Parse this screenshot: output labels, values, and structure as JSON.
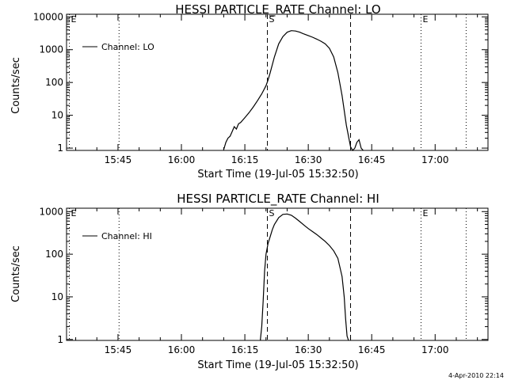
{
  "chart_data": [
    {
      "type": "line",
      "title": "HESSI PARTICLE_RATE Channel: LO",
      "xlabel": "Start Time (19-Jul-05 15:32:50)",
      "ylabel": "Counts/sec",
      "y_scale": "log",
      "ylim": [
        0.85,
        12000
      ],
      "xlim": [
        "15:32:50",
        "17:12:30"
      ],
      "x_ticks": [
        "15:45",
        "16:00",
        "16:15",
        "16:30",
        "16:45",
        "17:00"
      ],
      "y_ticks": [
        "1",
        "10",
        "100",
        "1000",
        "10000"
      ],
      "legend": {
        "placement": "top-left",
        "entries": [
          "Channel: LO"
        ]
      },
      "grid": false,
      "markers": [
        {
          "label": "E",
          "time": "15:33:30",
          "style": "dotted"
        },
        {
          "time": "15:45:15",
          "style": "dotted"
        },
        {
          "label": "S",
          "time": "16:20:20",
          "style": "dashed"
        },
        {
          "time": "16:40:00",
          "style": "dashed"
        },
        {
          "label": "E",
          "time": "16:56:40",
          "style": "dotted"
        },
        {
          "time": "17:07:20",
          "style": "dotted"
        }
      ],
      "series": [
        {
          "name": "Channel: LO",
          "x": [
            "16:10:00",
            "16:10:30",
            "16:11:00",
            "16:11:30",
            "16:12:00",
            "16:12:30",
            "16:13:00",
            "16:13:30",
            "16:14:00",
            "16:15:00",
            "16:16:00",
            "16:17:00",
            "16:18:00",
            "16:19:00",
            "16:20:00",
            "16:20:30",
            "16:21:00",
            "16:22:00",
            "16:23:00",
            "16:24:00",
            "16:25:00",
            "16:26:00",
            "16:27:00",
            "16:28:00",
            "16:29:00",
            "16:30:00",
            "16:31:00",
            "16:32:00",
            "16:33:00",
            "16:34:00",
            "16:35:00",
            "16:36:00",
            "16:37:00",
            "16:38:00",
            "16:39:00",
            "16:40:00",
            "16:40:30",
            "16:41:00",
            "16:41:30",
            "16:42:00",
            "16:42:30",
            "16:43:00"
          ],
          "values": [
            0.9,
            1.5,
            2.0,
            2.3,
            3.2,
            4.5,
            3.8,
            5.5,
            6.0,
            8.5,
            12,
            18,
            28,
            45,
            80,
            120,
            200,
            600,
            1500,
            2500,
            3400,
            3800,
            3700,
            3400,
            3000,
            2700,
            2400,
            2100,
            1800,
            1500,
            1100,
            600,
            200,
            40,
            5,
            1.1,
            0.85,
            1.0,
            1.5,
            1.8,
            1.0,
            0.85
          ]
        }
      ]
    },
    {
      "type": "line",
      "title": "HESSI PARTICLE_RATE Channel: HI",
      "xlabel": "Start Time (19-Jul-05 15:32:50)",
      "ylabel": "Counts/sec",
      "y_scale": "log",
      "ylim": [
        0.95,
        1200
      ],
      "xlim": [
        "15:32:50",
        "17:12:30"
      ],
      "x_ticks": [
        "15:45",
        "16:00",
        "16:15",
        "16:30",
        "16:45",
        "17:00"
      ],
      "y_ticks": [
        "1",
        "10",
        "100",
        "1000"
      ],
      "legend": {
        "placement": "top-left",
        "entries": [
          "Channel: HI"
        ]
      },
      "grid": false,
      "markers": [
        {
          "label": "E",
          "time": "15:33:30",
          "style": "dotted"
        },
        {
          "time": "15:45:15",
          "style": "dotted"
        },
        {
          "label": "S",
          "time": "16:20:20",
          "style": "dashed"
        },
        {
          "time": "16:40:00",
          "style": "dashed"
        },
        {
          "label": "E",
          "time": "16:56:40",
          "style": "dotted"
        },
        {
          "time": "17:07:20",
          "style": "dotted"
        }
      ],
      "series": [
        {
          "name": "Channel: HI",
          "x": [
            "16:18:40",
            "16:19:00",
            "16:19:20",
            "16:19:40",
            "16:20:00",
            "16:20:30",
            "16:21:00",
            "16:21:30",
            "16:22:00",
            "16:23:00",
            "16:24:00",
            "16:25:00",
            "16:26:00",
            "16:27:00",
            "16:28:00",
            "16:29:00",
            "16:30:00",
            "16:31:00",
            "16:32:00",
            "16:33:00",
            "16:34:00",
            "16:35:00",
            "16:36:00",
            "16:37:00",
            "16:38:00",
            "16:38:30",
            "16:38:50",
            "16:39:10",
            "16:39:30"
          ],
          "values": [
            0.95,
            2,
            8,
            40,
            100,
            180,
            260,
            380,
            500,
            720,
            860,
            880,
            820,
            700,
            580,
            480,
            400,
            340,
            290,
            240,
            200,
            160,
            120,
            80,
            30,
            10,
            3,
            1.2,
            0.95
          ]
        }
      ]
    }
  ],
  "footer": {
    "timestamp": "4-Apr-2010 22:14"
  }
}
